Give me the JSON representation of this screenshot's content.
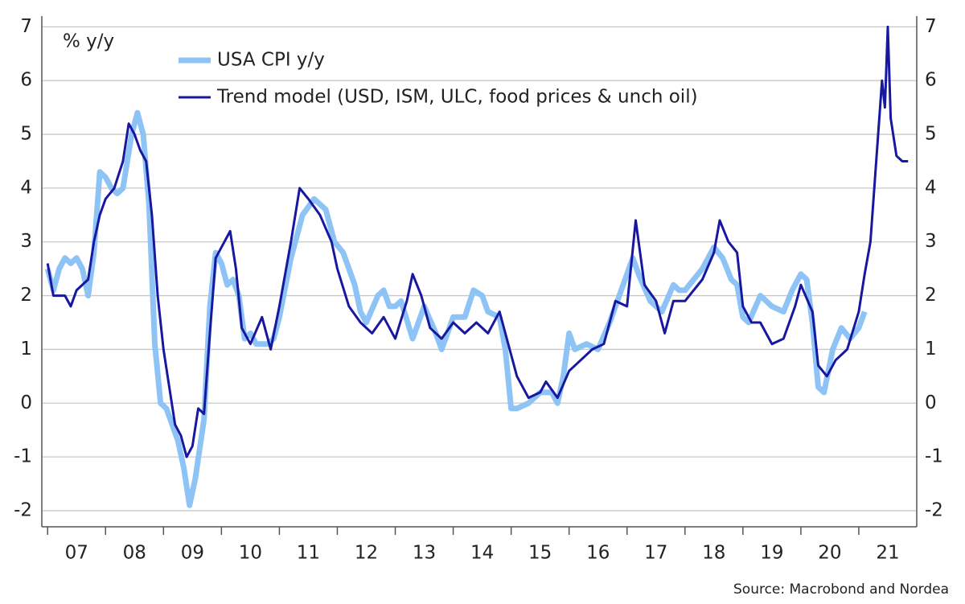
{
  "chart_data": {
    "type": "line",
    "y_axis_label": "% y/y",
    "source": "Source: Macrobond and Nordea",
    "xlim": [
      2006.9,
      2022.0
    ],
    "xticks": [
      {
        "value": 2007,
        "label": "07"
      },
      {
        "value": 2008,
        "label": "08"
      },
      {
        "value": 2009,
        "label": "09"
      },
      {
        "value": 2010,
        "label": "10"
      },
      {
        "value": 2011,
        "label": "11"
      },
      {
        "value": 2012,
        "label": "12"
      },
      {
        "value": 2013,
        "label": "13"
      },
      {
        "value": 2014,
        "label": "14"
      },
      {
        "value": 2015,
        "label": "15"
      },
      {
        "value": 2016,
        "label": "16"
      },
      {
        "value": 2017,
        "label": "17"
      },
      {
        "value": 2018,
        "label": "18"
      },
      {
        "value": 2019,
        "label": "19"
      },
      {
        "value": 2020,
        "label": "20"
      },
      {
        "value": 2021,
        "label": "21"
      }
    ],
    "ylim": [
      -2.3,
      7.2
    ],
    "yticks": [
      -2,
      -1,
      0,
      1,
      2,
      3,
      4,
      5,
      6,
      7
    ],
    "grid": true,
    "series": [
      {
        "name": "USA CPI y/y",
        "color": "#8ec3f5",
        "x": [
          2007.0,
          2007.1,
          2007.2,
          2007.3,
          2007.4,
          2007.5,
          2007.6,
          2007.7,
          2007.8,
          2007.9,
          2008.0,
          2008.1,
          2008.2,
          2008.3,
          2008.45,
          2008.55,
          2008.65,
          2008.75,
          2008.85,
          2008.95,
          2009.05,
          2009.15,
          2009.25,
          2009.35,
          2009.45,
          2009.55,
          2009.7,
          2009.8,
          2009.9,
          2010.0,
          2010.1,
          2010.2,
          2010.3,
          2010.4,
          2010.5,
          2010.6,
          2010.8,
          2010.9,
          2011.0,
          2011.2,
          2011.4,
          2011.6,
          2011.8,
          2011.95,
          2012.1,
          2012.3,
          2012.4,
          2012.5,
          2012.7,
          2012.8,
          2012.9,
          2013.0,
          2013.1,
          2013.3,
          2013.5,
          2013.7,
          2013.8,
          2013.9,
          2014.0,
          2014.2,
          2014.35,
          2014.5,
          2014.6,
          2014.8,
          2014.9,
          2015.0,
          2015.1,
          2015.3,
          2015.5,
          2015.7,
          2015.8,
          2015.9,
          2016.0,
          2016.1,
          2016.3,
          2016.5,
          2016.7,
          2016.9,
          2017.1,
          2017.2,
          2017.4,
          2017.6,
          2017.8,
          2017.9,
          2018.0,
          2018.3,
          2018.5,
          2018.65,
          2018.8,
          2018.9,
          2019.0,
          2019.1,
          2019.3,
          2019.5,
          2019.7,
          2019.85,
          2020.0,
          2020.1,
          2020.2,
          2020.3,
          2020.4,
          2020.55,
          2020.7,
          2020.85,
          2021.0,
          2021.1
        ],
        "values": [
          2.5,
          2.1,
          2.5,
          2.7,
          2.6,
          2.7,
          2.5,
          2.0,
          2.8,
          4.3,
          4.2,
          4.0,
          3.9,
          4.0,
          5.0,
          5.4,
          5.0,
          3.7,
          1.1,
          0.0,
          -0.1,
          -0.4,
          -0.7,
          -1.2,
          -1.9,
          -1.4,
          -0.3,
          1.8,
          2.8,
          2.6,
          2.2,
          2.3,
          2.0,
          1.2,
          1.3,
          1.1,
          1.1,
          1.2,
          1.6,
          2.7,
          3.5,
          3.8,
          3.6,
          3.0,
          2.8,
          2.2,
          1.7,
          1.5,
          2.0,
          2.1,
          1.8,
          1.8,
          1.9,
          1.2,
          1.8,
          1.3,
          1.0,
          1.3,
          1.6,
          1.6,
          2.1,
          2.0,
          1.7,
          1.6,
          1.0,
          -0.1,
          -0.1,
          0.0,
          0.2,
          0.2,
          0.0,
          0.5,
          1.3,
          1.0,
          1.1,
          1.0,
          1.5,
          2.1,
          2.7,
          2.4,
          1.9,
          1.7,
          2.2,
          2.1,
          2.1,
          2.5,
          2.9,
          2.7,
          2.3,
          2.2,
          1.6,
          1.5,
          2.0,
          1.8,
          1.7,
          2.1,
          2.4,
          2.3,
          1.5,
          0.3,
          0.2,
          1.0,
          1.4,
          1.2,
          1.4,
          1.7
        ]
      },
      {
        "name": "Trend model (USD, ISM, ULC, food prices & unch oil)",
        "color": "#1717a0",
        "x": [
          2007.0,
          2007.1,
          2007.3,
          2007.4,
          2007.5,
          2007.7,
          2007.8,
          2007.9,
          2008.0,
          2008.15,
          2008.3,
          2008.4,
          2008.5,
          2008.6,
          2008.7,
          2008.8,
          2008.9,
          2009.0,
          2009.1,
          2009.2,
          2009.3,
          2009.4,
          2009.5,
          2009.6,
          2009.7,
          2009.8,
          2009.9,
          2010.0,
          2010.15,
          2010.25,
          2010.35,
          2010.5,
          2010.7,
          2010.85,
          2011.0,
          2011.2,
          2011.35,
          2011.5,
          2011.7,
          2011.9,
          2012.0,
          2012.2,
          2012.4,
          2012.6,
          2012.8,
          2013.0,
          2013.2,
          2013.3,
          2013.45,
          2013.6,
          2013.8,
          2014.0,
          2014.2,
          2014.4,
          2014.6,
          2014.8,
          2014.95,
          2015.1,
          2015.3,
          2015.5,
          2015.6,
          2015.8,
          2016.0,
          2016.2,
          2016.4,
          2016.6,
          2016.8,
          2017.0,
          2017.15,
          2017.3,
          2017.5,
          2017.65,
          2017.8,
          2018.0,
          2018.3,
          2018.5,
          2018.6,
          2018.75,
          2018.9,
          2019.0,
          2019.15,
          2019.3,
          2019.5,
          2019.7,
          2019.9,
          2020.0,
          2020.2,
          2020.3,
          2020.45,
          2020.6,
          2020.8,
          2021.0,
          2021.1,
          2021.2,
          2021.3,
          2021.4,
          2021.45,
          2021.5,
          2021.55,
          2021.65,
          2021.75,
          2021.85
        ],
        "values": [
          2.6,
          2.0,
          2.0,
          1.8,
          2.1,
          2.3,
          3.0,
          3.5,
          3.8,
          4.0,
          4.5,
          5.2,
          5.0,
          4.7,
          4.5,
          3.5,
          2.0,
          1.0,
          0.3,
          -0.4,
          -0.6,
          -1.0,
          -0.8,
          -0.1,
          -0.2,
          1.3,
          2.7,
          2.9,
          3.2,
          2.5,
          1.4,
          1.1,
          1.6,
          1.0,
          1.8,
          3.0,
          4.0,
          3.8,
          3.5,
          3.0,
          2.5,
          1.8,
          1.5,
          1.3,
          1.6,
          1.2,
          1.9,
          2.4,
          2.0,
          1.4,
          1.2,
          1.5,
          1.3,
          1.5,
          1.3,
          1.7,
          1.1,
          0.5,
          0.1,
          0.2,
          0.4,
          0.1,
          0.6,
          0.8,
          1.0,
          1.1,
          1.9,
          1.8,
          3.4,
          2.2,
          1.9,
          1.3,
          1.9,
          1.9,
          2.3,
          2.8,
          3.4,
          3.0,
          2.8,
          1.8,
          1.5,
          1.5,
          1.1,
          1.2,
          1.8,
          2.2,
          1.7,
          0.7,
          0.5,
          0.8,
          1.0,
          1.7,
          2.4,
          3.0,
          4.5,
          6.0,
          5.5,
          7.0,
          5.3,
          4.6,
          4.5,
          4.5
        ]
      }
    ]
  }
}
